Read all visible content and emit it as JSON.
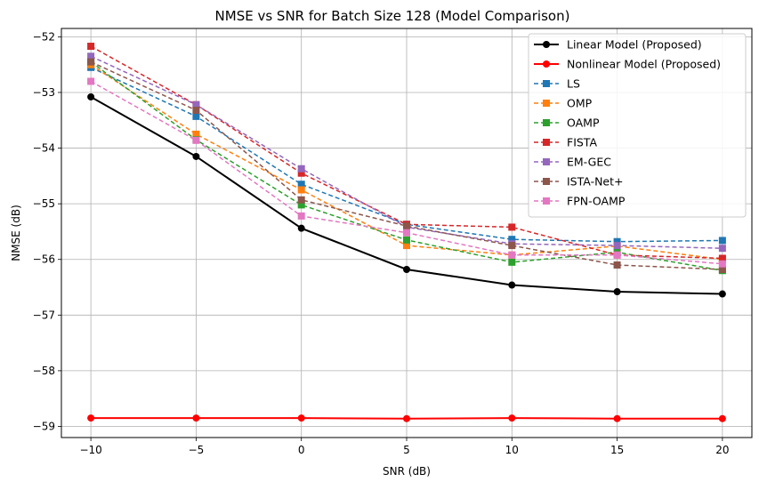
{
  "chart_data": {
    "type": "line",
    "title": "NMSE vs SNR for Batch Size 128 (Model Comparison)",
    "xlabel": "SNR (dB)",
    "ylabel": "NMSE (dB)",
    "x": [
      -10,
      -5,
      0,
      5,
      10,
      15,
      20
    ],
    "xlim": [
      -11.4,
      21.4
    ],
    "ylim": [
      -59.2,
      -51.85
    ],
    "xticks": [
      -10,
      -5,
      0,
      5,
      10,
      15,
      20
    ],
    "xtick_labels": [
      "−10",
      "−5",
      "0",
      "5",
      "10",
      "15",
      "20"
    ],
    "yticks": [
      -59,
      -58,
      -57,
      -56,
      -55,
      -54,
      -53,
      -52
    ],
    "ytick_labels": [
      "−59",
      "−58",
      "−57",
      "−56",
      "−55",
      "−54",
      "−53",
      "−52"
    ],
    "grid": true,
    "legend_position": "top-right",
    "series": [
      {
        "name": "Linear Model (Proposed)",
        "color": "#000000",
        "marker": "circle",
        "dashed": false,
        "width": 2,
        "values": [
          -53.08,
          -54.15,
          -55.44,
          -56.18,
          -56.46,
          -56.58,
          -56.62
        ]
      },
      {
        "name": "Nonlinear Model (Proposed)",
        "color": "#ff0000",
        "marker": "circle",
        "dashed": false,
        "width": 2,
        "values": [
          -58.85,
          -58.85,
          -58.85,
          -58.86,
          -58.85,
          -58.86,
          -58.86
        ]
      },
      {
        "name": "LS",
        "color": "#1f77b4",
        "marker": "square",
        "dashed": true,
        "width": 1.5,
        "values": [
          -52.55,
          -53.43,
          -54.65,
          -55.37,
          -55.64,
          -55.68,
          -55.66
        ]
      },
      {
        "name": "OMP",
        "color": "#ff7f0e",
        "marker": "square",
        "dashed": true,
        "width": 1.5,
        "values": [
          -52.5,
          -53.75,
          -54.75,
          -55.75,
          -55.92,
          -55.76,
          -56.0
        ]
      },
      {
        "name": "OAMP",
        "color": "#2ca02c",
        "marker": "square",
        "dashed": true,
        "width": 1.5,
        "values": [
          -52.45,
          -53.85,
          -55.02,
          -55.65,
          -56.05,
          -55.87,
          -56.2
        ]
      },
      {
        "name": "FISTA",
        "color": "#d62728",
        "marker": "square",
        "dashed": true,
        "width": 1.5,
        "values": [
          -52.17,
          -53.22,
          -54.45,
          -55.37,
          -55.42,
          -55.92,
          -55.98
        ]
      },
      {
        "name": "EM-GEC",
        "color": "#9467bd",
        "marker": "square",
        "dashed": true,
        "width": 1.5,
        "values": [
          -52.35,
          -53.22,
          -54.37,
          -55.42,
          -55.72,
          -55.75,
          -55.8
        ]
      },
      {
        "name": "ISTA-Net+",
        "color": "#8c564b",
        "marker": "square",
        "dashed": true,
        "width": 1.5,
        "values": [
          -52.45,
          -53.32,
          -54.93,
          -55.4,
          -55.75,
          -56.1,
          -56.18
        ]
      },
      {
        "name": "FPN-OAMP",
        "color": "#e377c2",
        "marker": "square",
        "dashed": true,
        "width": 1.5,
        "values": [
          -52.8,
          -53.86,
          -55.22,
          -55.52,
          -55.92,
          -55.92,
          -56.08
        ]
      }
    ]
  }
}
